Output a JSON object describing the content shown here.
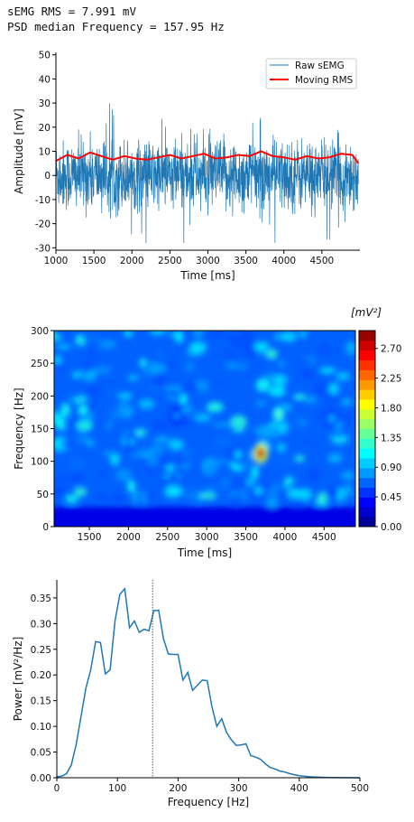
{
  "header": {
    "rms_line": "sEMG RMS = 7.991 mV",
    "psd_line": "PSD median Frequency = 157.95 Hz"
  },
  "chart_data": [
    {
      "type": "line",
      "xlabel": "Time [ms]",
      "ylabel": "Amplitude [mV]",
      "xlim": [
        1000,
        5000
      ],
      "ylim": [
        -31,
        51
      ],
      "xticks": [
        1000,
        1500,
        2000,
        2500,
        3000,
        3500,
        4000,
        4500
      ],
      "yticks": [
        -30,
        -20,
        -10,
        0,
        10,
        20,
        30,
        40,
        50
      ],
      "legend_position": "top-right",
      "series": [
        {
          "name": "Raw sEMG",
          "color": "#1f77b4",
          "note": "dense noise signal, roughly -28 to 48 mV"
        },
        {
          "name": "Moving RMS",
          "color": "#ff0000",
          "x": [
            1000,
            1150,
            1300,
            1450,
            1600,
            1750,
            1900,
            2050,
            2200,
            2350,
            2500,
            2650,
            2800,
            2950,
            3100,
            3250,
            3400,
            3550,
            3700,
            3850,
            4000,
            4150,
            4300,
            4450,
            4600,
            4750,
            4900,
            4980
          ],
          "values": [
            6,
            8.5,
            7,
            9.5,
            8,
            6.5,
            8,
            7,
            6.5,
            7.5,
            8.5,
            7,
            8,
            9,
            7,
            7.5,
            8.5,
            8,
            10,
            8,
            7.5,
            6.5,
            8,
            7,
            7.5,
            9,
            8.5,
            5
          ]
        }
      ]
    },
    {
      "type": "heatmap",
      "xlabel": "Time [ms]",
      "ylabel": "Frequency [Hz]",
      "colorbar_label": "[mV²]",
      "xlim": [
        1050,
        4900
      ],
      "ylim": [
        0,
        300
      ],
      "xticks": [
        1500,
        2000,
        2500,
        3000,
        3500,
        4000,
        4500
      ],
      "yticks": [
        0,
        50,
        100,
        150,
        200,
        250,
        300
      ],
      "colorbar_ticks": [
        "0.00",
        "0.45",
        "0.90",
        "1.35",
        "1.80",
        "2.25",
        "2.70"
      ],
      "colorbar_range": [
        0,
        2.97
      ],
      "hotspots": [
        {
          "t": 3690,
          "f": 112,
          "v": 2.9
        },
        {
          "t": 3920,
          "f": 172,
          "v": 1.4
        },
        {
          "t": 1420,
          "f": 178,
          "v": 1.2
        },
        {
          "t": 2700,
          "f": 195,
          "v": 1.1
        },
        {
          "t": 3400,
          "f": 110,
          "v": 1.0
        },
        {
          "t": 3660,
          "f": 55,
          "v": 1.0
        },
        {
          "t": 1100,
          "f": 255,
          "v": 1.0
        },
        {
          "t": 4600,
          "f": 165,
          "v": 0.9
        },
        {
          "t": 2050,
          "f": 130,
          "v": 0.9
        },
        {
          "t": 2620,
          "f": 170,
          "v": 0.8
        }
      ]
    },
    {
      "type": "line",
      "xlabel": "Frequency [Hz]",
      "ylabel": "Power [mV²/Hz]",
      "xlim": [
        0,
        500
      ],
      "ylim": [
        0,
        0.385
      ],
      "xticks": [
        0,
        100,
        200,
        300,
        400,
        500
      ],
      "yticks": [
        "0.00",
        "0.05",
        "0.10",
        "0.15",
        "0.20",
        "0.25",
        "0.30",
        "0.35"
      ],
      "median_line": 157.95,
      "series": [
        {
          "color": "#1f77b4",
          "x": [
            0,
            8,
            16,
            24,
            32,
            40,
            48,
            56,
            64,
            72,
            80,
            88,
            96,
            104,
            112,
            120,
            128,
            136,
            144,
            152,
            160,
            168,
            176,
            184,
            192,
            200,
            208,
            216,
            224,
            232,
            240,
            248,
            256,
            264,
            272,
            280,
            288,
            296,
            304,
            312,
            320,
            328,
            336,
            344,
            352,
            360,
            368,
            376,
            384,
            392,
            400,
            416,
            432,
            448,
            464,
            480,
            500
          ],
          "values": [
            0.002,
            0.003,
            0.008,
            0.025,
            0.065,
            0.12,
            0.175,
            0.21,
            0.265,
            0.263,
            0.202,
            0.21,
            0.305,
            0.357,
            0.368,
            0.292,
            0.305,
            0.283,
            0.289,
            0.286,
            0.325,
            0.326,
            0.27,
            0.241,
            0.24,
            0.24,
            0.19,
            0.205,
            0.17,
            0.18,
            0.19,
            0.189,
            0.138,
            0.1,
            0.115,
            0.088,
            0.074,
            0.063,
            0.064,
            0.066,
            0.043,
            0.04,
            0.036,
            0.027,
            0.02,
            0.017,
            0.013,
            0.011,
            0.008,
            0.006,
            0.004,
            0.002,
            0.001,
            0.0005,
            0.0002,
            0.0001,
            0.0
          ]
        }
      ]
    }
  ]
}
